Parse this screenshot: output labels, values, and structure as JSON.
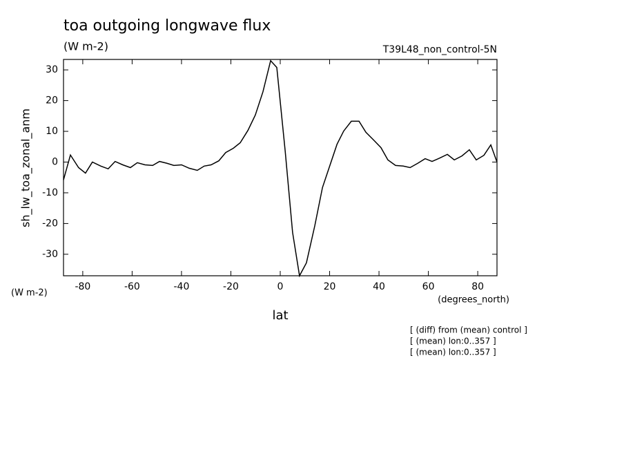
{
  "chart_data": {
    "type": "line",
    "title": "toa outgoing longwave flux",
    "subtitle": "(W m-2)",
    "dataset": "T39L48_non_control-5N",
    "y_label": "sh_lw_toa_zonal_anm",
    "y_units": "(W m-2)",
    "x_label": "lat",
    "x_units": "(degrees_north)",
    "notes": [
      "[ (diff) from (mean) control ]",
      "[ (mean) lon:0..357 ]",
      "[ (mean) lon:0..357 ]"
    ],
    "x": [
      -87.8,
      -85.0,
      -81.7,
      -78.9,
      -76.1,
      -72.7,
      -69.7,
      -66.9,
      -63.8,
      -60.7,
      -57.9,
      -54.8,
      -51.7,
      -48.9,
      -45.9,
      -43.1,
      -40.0,
      -36.9,
      -33.6,
      -30.8,
      -28.0,
      -24.9,
      -22.1,
      -19.0,
      -16.2,
      -13.1,
      -10.1,
      -7.0,
      -3.9,
      -1.4,
      2.0,
      5.0,
      7.8,
      10.6,
      14.0,
      17.1,
      19.9,
      23.0,
      25.7,
      28.8,
      31.9,
      34.7,
      37.8,
      40.8,
      43.6,
      46.7,
      49.8,
      52.6,
      55.7,
      58.7,
      61.5,
      64.6,
      67.7,
      70.5,
      73.6,
      76.6,
      79.4,
      82.5,
      85.3,
      87.8
    ],
    "series": [
      {
        "name": "sh_lw_toa_zonal_anm",
        "color": "#000000",
        "values": [
          -5.8,
          2.3,
          -1.8,
          -3.6,
          0,
          -1.3,
          -2.2,
          0.2,
          -0.9,
          -1.8,
          -0.2,
          -0.9,
          -1.1,
          0.2,
          -0.4,
          -1.1,
          -0.9,
          -2.0,
          -2.7,
          -1.3,
          -0.9,
          0.4,
          3.1,
          4.5,
          6.3,
          10.3,
          15.3,
          22.9,
          33.0,
          30.8,
          3.6,
          -22.9,
          -37.0,
          -32.8,
          -20.7,
          -8.3,
          -1.6,
          5.8,
          10.1,
          13.3,
          13.3,
          9.7,
          7.2,
          4.7,
          0.7,
          -1.1,
          -1.3,
          -1.8,
          -0.4,
          1.1,
          0.2,
          1.3,
          2.5,
          0.7,
          2.0,
          4.0,
          0.7,
          2.2,
          5.6,
          0
        ]
      }
    ],
    "xlim": [
      -87.8,
      87.8
    ],
    "ylim": [
      -37.0,
      33.4
    ],
    "xticks": [
      -80,
      -60,
      -40,
      -20,
      0,
      20,
      40,
      60,
      80
    ],
    "yticks": [
      -30,
      -20,
      -10,
      0,
      10,
      20,
      30
    ]
  }
}
